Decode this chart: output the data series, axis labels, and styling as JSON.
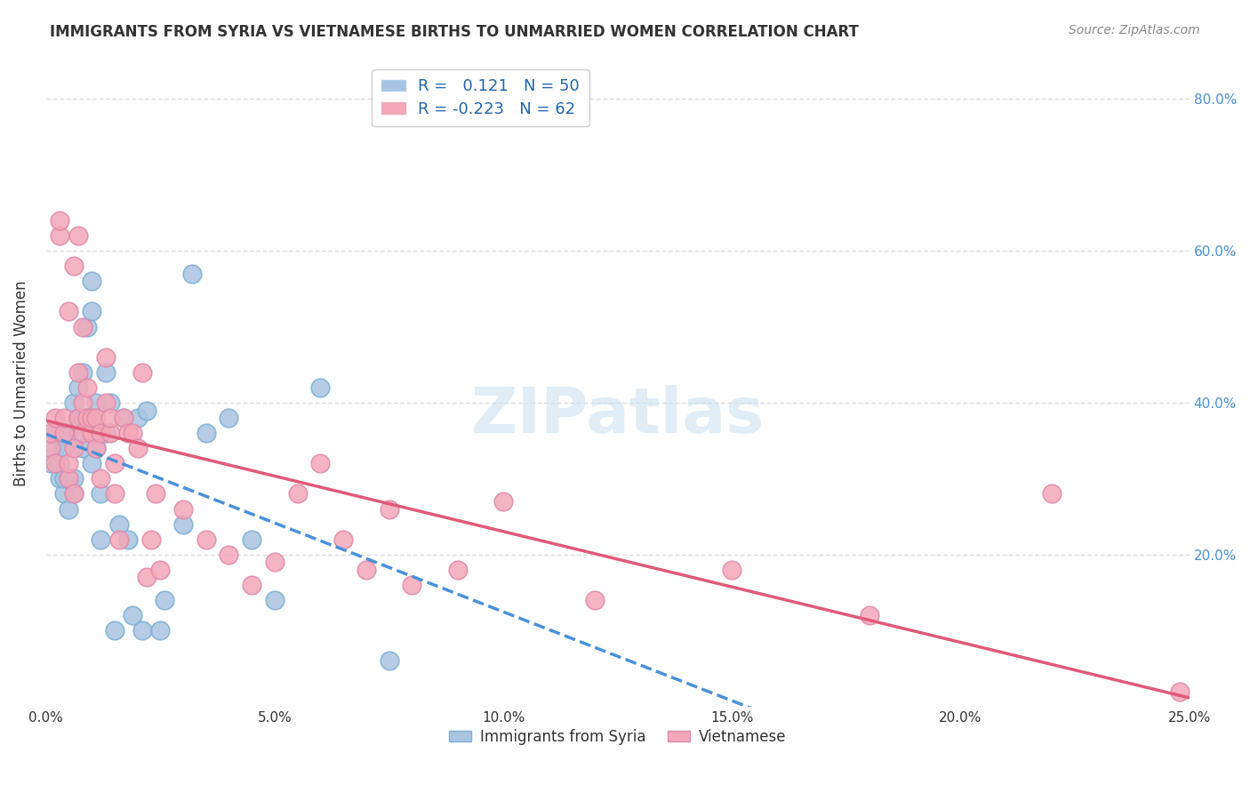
{
  "title": "IMMIGRANTS FROM SYRIA VS VIETNAMESE BIRTHS TO UNMARRIED WOMEN CORRELATION CHART",
  "source": "Source: ZipAtlas.com",
  "xlabel_bottom": "",
  "ylabel": "Births to Unmarried Women",
  "xlim": [
    0.0,
    0.25
  ],
  "ylim": [
    0.0,
    0.85
  ],
  "xticks": [
    0.0,
    0.05,
    0.1,
    0.15,
    0.2,
    0.25
  ],
  "xticklabels": [
    "0.0%",
    "5.0%",
    "10.0%",
    "15.0%",
    "20.0%",
    "25.0%"
  ],
  "yticks_left": [
    0.2,
    0.4,
    0.6,
    0.8
  ],
  "yticks_right": [
    0.2,
    0.4,
    0.6,
    0.8
  ],
  "yticklabels_right": [
    "20.0%",
    "40.0%",
    "60.0%",
    "80.0%"
  ],
  "blue_color": "#a8c4e0",
  "pink_color": "#f4a7b9",
  "blue_line_color": "#4a90d9",
  "pink_line_color": "#e05a7a",
  "R_blue": 0.121,
  "N_blue": 50,
  "R_pink": -0.223,
  "N_pink": 62,
  "blue_scatter_x": [
    0.001,
    0.002,
    0.002,
    0.003,
    0.003,
    0.004,
    0.004,
    0.004,
    0.005,
    0.005,
    0.005,
    0.006,
    0.006,
    0.006,
    0.007,
    0.007,
    0.007,
    0.008,
    0.008,
    0.008,
    0.009,
    0.009,
    0.01,
    0.01,
    0.01,
    0.011,
    0.011,
    0.012,
    0.012,
    0.013,
    0.013,
    0.014,
    0.015,
    0.016,
    0.017,
    0.018,
    0.019,
    0.02,
    0.021,
    0.022,
    0.025,
    0.026,
    0.03,
    0.032,
    0.035,
    0.04,
    0.045,
    0.05,
    0.06,
    0.075
  ],
  "blue_scatter_y": [
    0.32,
    0.34,
    0.36,
    0.3,
    0.32,
    0.28,
    0.3,
    0.34,
    0.26,
    0.3,
    0.36,
    0.28,
    0.3,
    0.4,
    0.36,
    0.38,
    0.42,
    0.34,
    0.38,
    0.44,
    0.38,
    0.5,
    0.32,
    0.52,
    0.56,
    0.34,
    0.4,
    0.22,
    0.28,
    0.36,
    0.44,
    0.4,
    0.1,
    0.24,
    0.38,
    0.22,
    0.12,
    0.38,
    0.1,
    0.39,
    0.1,
    0.14,
    0.24,
    0.57,
    0.36,
    0.38,
    0.22,
    0.14,
    0.42,
    0.06
  ],
  "pink_scatter_x": [
    0.001,
    0.001,
    0.002,
    0.002,
    0.003,
    0.003,
    0.004,
    0.004,
    0.005,
    0.005,
    0.005,
    0.006,
    0.006,
    0.006,
    0.007,
    0.007,
    0.007,
    0.008,
    0.008,
    0.008,
    0.009,
    0.009,
    0.01,
    0.01,
    0.011,
    0.011,
    0.012,
    0.012,
    0.013,
    0.013,
    0.014,
    0.014,
    0.015,
    0.015,
    0.016,
    0.017,
    0.018,
    0.019,
    0.02,
    0.021,
    0.022,
    0.023,
    0.024,
    0.025,
    0.03,
    0.035,
    0.04,
    0.045,
    0.05,
    0.055,
    0.06,
    0.065,
    0.07,
    0.075,
    0.08,
    0.09,
    0.1,
    0.12,
    0.15,
    0.18,
    0.22,
    0.248
  ],
  "pink_scatter_y": [
    0.34,
    0.36,
    0.32,
    0.38,
    0.62,
    0.64,
    0.36,
    0.38,
    0.3,
    0.32,
    0.52,
    0.28,
    0.34,
    0.58,
    0.62,
    0.38,
    0.44,
    0.36,
    0.4,
    0.5,
    0.38,
    0.42,
    0.36,
    0.38,
    0.34,
    0.38,
    0.3,
    0.36,
    0.4,
    0.46,
    0.36,
    0.38,
    0.28,
    0.32,
    0.22,
    0.38,
    0.36,
    0.36,
    0.34,
    0.44,
    0.17,
    0.22,
    0.28,
    0.18,
    0.26,
    0.22,
    0.2,
    0.16,
    0.19,
    0.28,
    0.32,
    0.22,
    0.18,
    0.26,
    0.16,
    0.18,
    0.27,
    0.14,
    0.18,
    0.12,
    0.28,
    0.02
  ],
  "watermark": "ZIPatlas",
  "background_color": "#ffffff",
  "grid_color": "#dddddd"
}
